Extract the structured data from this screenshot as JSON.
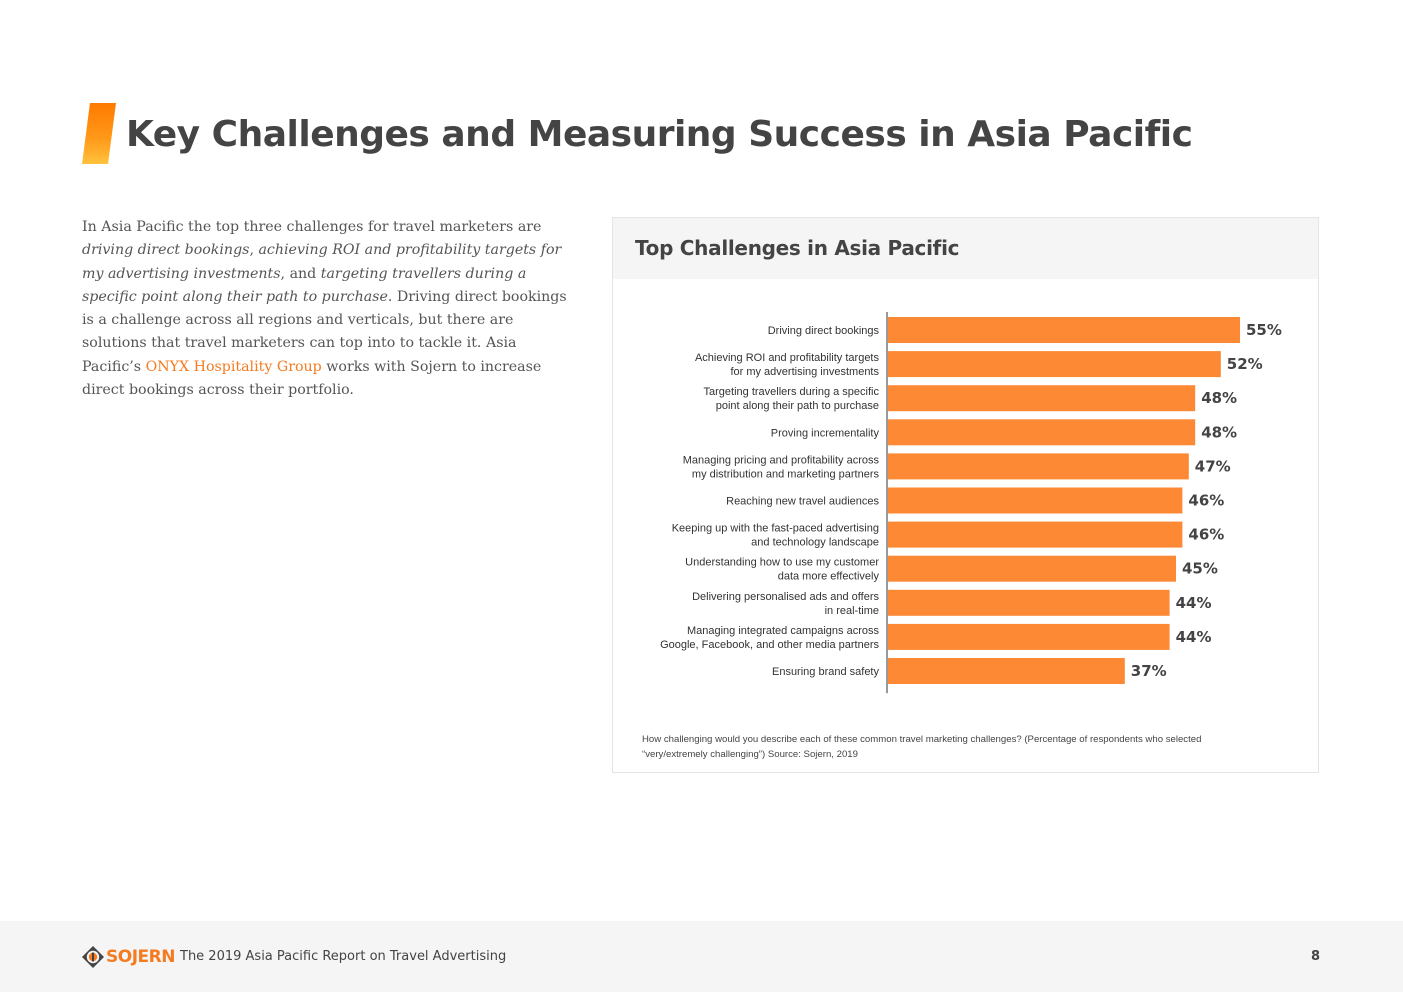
{
  "heading": {
    "title": "Key Challenges and Measuring Success in Asia Pacific"
  },
  "intro": {
    "p1": "In Asia Pacific the top three challenges for travel marketers are ",
    "em1": "driving direct bookings",
    "p2": ", ",
    "em2": "achieving ROI and profitability targets for my advertising investments",
    "p3": ", and ",
    "em3": "targeting travellers during a specific point along their path to purchase",
    "p4": ". Driving direct bookings is a challenge across all regions and verticals, but there are solutions that travel marketers can top into to tackle it. Asia Pacific’s ",
    "link": "ONYX Hospitality Group",
    "p5": " works with Sojern to increase direct bookings across their portfolio."
  },
  "chart_card": {
    "note": "How challenging would you describe each of these common travel marketing challenges? (Percentage of respondents who selected “very/extremely challenging”) Source: Sojern, 2019"
  },
  "chart_data": {
    "type": "bar",
    "orientation": "horizontal",
    "title": "Top Challenges in Asia Pacific",
    "categories": [
      [
        "Driving direct bookings"
      ],
      [
        "Achieving ROI and profitability targets",
        "for my advertising investments"
      ],
      [
        "Targeting travellers during a specific",
        "point along their path to purchase"
      ],
      [
        "Proving incrementality"
      ],
      [
        "Managing pricing and profitability across",
        "my distribution and marketing partners"
      ],
      [
        "Reaching new travel audiences"
      ],
      [
        "Keeping up with the fast-paced advertising",
        "and technology landscape"
      ],
      [
        "Understanding how to use my customer",
        "data more effectively"
      ],
      [
        "Delivering personalised ads and offers",
        "in real-time"
      ],
      [
        "Managing integrated campaigns across",
        "Google, Facebook, and other media partners"
      ],
      [
        "Ensuring brand safety"
      ]
    ],
    "values": [
      55,
      52,
      48,
      48,
      47,
      46,
      46,
      45,
      44,
      44,
      37
    ],
    "value_suffix": "%",
    "xlim": [
      0,
      55
    ],
    "bar_color": "#fd8935",
    "grid": false
  },
  "footer": {
    "logo_text": "SOJERN",
    "report_title": "The 2019 Asia Pacific Report on Travel Advertising",
    "page_number": "8"
  },
  "colors": {
    "accent": "#f47b20",
    "text": "#444444"
  }
}
